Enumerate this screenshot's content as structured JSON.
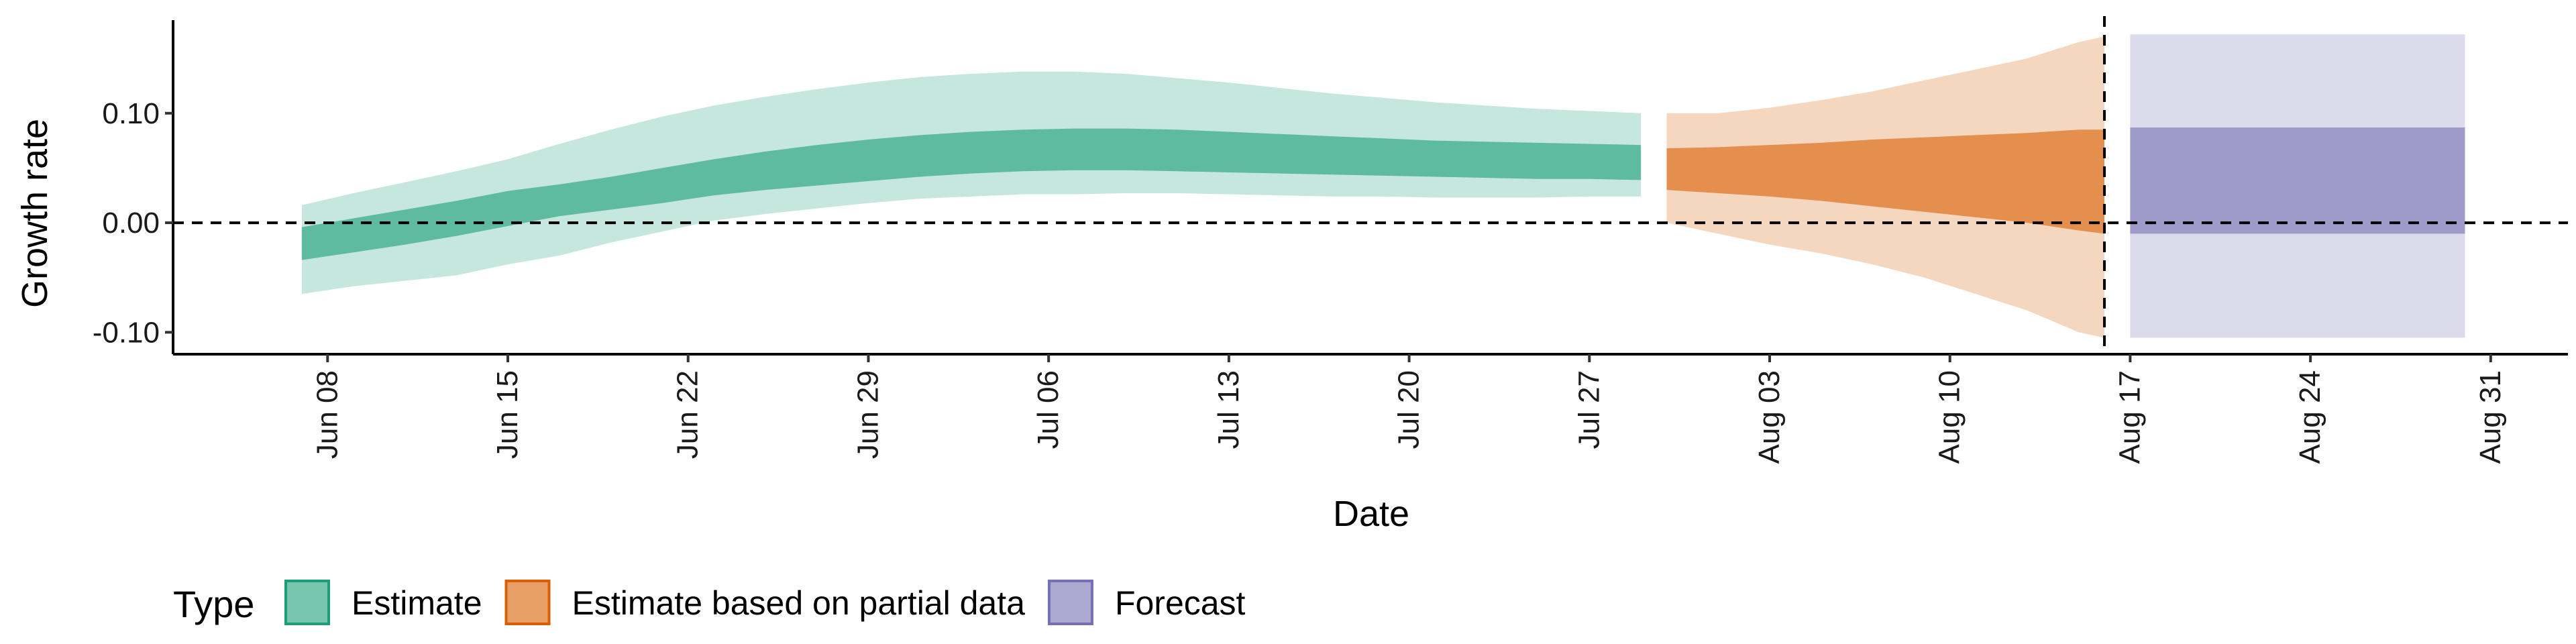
{
  "chart_data": {
    "type": "area",
    "xlabel": "Date",
    "ylabel": "Growth rate",
    "ylim": [
      -0.12,
      0.185
    ],
    "xlim": [
      "2020-06-02",
      "2020-09-03"
    ],
    "y_ticks": [
      -0.1,
      0.0,
      0.1
    ],
    "y_tick_labels": [
      "-0.10",
      "0.00",
      "0.10"
    ],
    "x_ticks": [
      "2020-06-08",
      "2020-06-15",
      "2020-06-22",
      "2020-06-29",
      "2020-07-06",
      "2020-07-13",
      "2020-07-20",
      "2020-07-27",
      "2020-08-03",
      "2020-08-10",
      "2020-08-17",
      "2020-08-24",
      "2020-08-31"
    ],
    "x_tick_labels": [
      "Jun 08",
      "Jun 15",
      "Jun 22",
      "Jun 29",
      "Jul 06",
      "Jul 13",
      "Jul 20",
      "Jul 27",
      "Aug 03",
      "Aug 10",
      "Aug 17",
      "Aug 24",
      "Aug 31"
    ],
    "reference_lines": [
      {
        "axis": "y",
        "value": 0.0,
        "style": "dashed"
      },
      {
        "axis": "x",
        "value": "2020-08-16",
        "style": "dashed"
      }
    ],
    "legend": {
      "title": "Type",
      "position": "bottom-left",
      "items": [
        {
          "label": "Estimate",
          "color": "#1b9e77"
        },
        {
          "label": "Estimate based on partial data",
          "color": "#d95f02"
        },
        {
          "label": "Forecast",
          "color": "#7570b3"
        }
      ]
    },
    "series": [
      {
        "name": "Estimate",
        "color": "#1b9e77",
        "x": [
          "2020-06-07",
          "2020-06-09",
          "2020-06-11",
          "2020-06-13",
          "2020-06-15",
          "2020-06-17",
          "2020-06-19",
          "2020-06-21",
          "2020-06-23",
          "2020-06-25",
          "2020-06-27",
          "2020-06-29",
          "2020-07-01",
          "2020-07-03",
          "2020-07-05",
          "2020-07-07",
          "2020-07-09",
          "2020-07-11",
          "2020-07-13",
          "2020-07-15",
          "2020-07-17",
          "2020-07-19",
          "2020-07-21",
          "2020-07-23",
          "2020-07-25",
          "2020-07-27",
          "2020-07-29"
        ],
        "lower90": [
          -0.065,
          -0.058,
          -0.053,
          -0.048,
          -0.038,
          -0.03,
          -0.018,
          -0.008,
          0.002,
          0.008,
          0.013,
          0.018,
          0.022,
          0.024,
          0.026,
          0.026,
          0.027,
          0.027,
          0.026,
          0.025,
          0.024,
          0.024,
          0.023,
          0.023,
          0.023,
          0.024,
          0.024
        ],
        "upper90": [
          0.016,
          0.027,
          0.037,
          0.047,
          0.058,
          0.072,
          0.085,
          0.097,
          0.107,
          0.115,
          0.122,
          0.128,
          0.133,
          0.136,
          0.138,
          0.138,
          0.136,
          0.132,
          0.128,
          0.123,
          0.118,
          0.114,
          0.11,
          0.107,
          0.104,
          0.102,
          0.1
        ],
        "lower50": [
          -0.034,
          -0.027,
          -0.02,
          -0.012,
          -0.003,
          0.006,
          0.012,
          0.018,
          0.025,
          0.03,
          0.034,
          0.038,
          0.042,
          0.045,
          0.047,
          0.048,
          0.048,
          0.047,
          0.046,
          0.045,
          0.044,
          0.043,
          0.042,
          0.041,
          0.04,
          0.04,
          0.039
        ],
        "upper50": [
          -0.004,
          0.004,
          0.012,
          0.02,
          0.029,
          0.035,
          0.042,
          0.05,
          0.058,
          0.065,
          0.071,
          0.076,
          0.08,
          0.083,
          0.085,
          0.086,
          0.086,
          0.085,
          0.083,
          0.081,
          0.079,
          0.077,
          0.075,
          0.074,
          0.073,
          0.072,
          0.071
        ]
      },
      {
        "name": "Estimate based on partial data",
        "color": "#d95f02",
        "x": [
          "2020-07-30",
          "2020-08-01",
          "2020-08-03",
          "2020-08-05",
          "2020-08-07",
          "2020-08-09",
          "2020-08-11",
          "2020-08-13",
          "2020-08-15",
          "2020-08-16"
        ],
        "lower90": [
          0.0,
          -0.01,
          -0.02,
          -0.028,
          -0.038,
          -0.05,
          -0.065,
          -0.08,
          -0.1,
          -0.105
        ],
        "upper90": [
          0.1,
          0.1,
          0.105,
          0.112,
          0.12,
          0.13,
          0.14,
          0.15,
          0.165,
          0.17
        ],
        "lower50": [
          0.03,
          0.027,
          0.024,
          0.02,
          0.015,
          0.01,
          0.005,
          0.0,
          -0.007,
          -0.01
        ],
        "upper50": [
          0.068,
          0.069,
          0.071,
          0.073,
          0.076,
          0.078,
          0.08,
          0.082,
          0.085,
          0.085
        ]
      },
      {
        "name": "Forecast",
        "color": "#7570b3",
        "x": [
          "2020-08-17",
          "2020-08-30"
        ],
        "lower90": [
          -0.105,
          -0.105
        ],
        "upper90": [
          0.172,
          0.172
        ],
        "lower50": [
          -0.01,
          -0.01
        ],
        "upper50": [
          0.087,
          0.087
        ]
      }
    ]
  }
}
